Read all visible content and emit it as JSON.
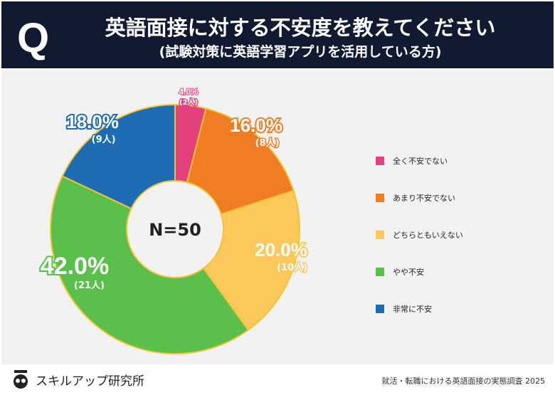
{
  "header": {
    "q": "Q",
    "title": "英語面接に対する不安度を教えてください",
    "subtitle": "(試験対策に英語学習アプリを活用している方)"
  },
  "chart_data": {
    "type": "pie",
    "donut": true,
    "center_label": "N=50",
    "categories": [
      "全く不安でない",
      "あまり不安でない",
      "どちらともいえない",
      "やや不安",
      "非常に不安"
    ],
    "values": [
      4.0,
      16.0,
      20.0,
      42.0,
      18.0
    ],
    "counts": [
      2,
      8,
      10,
      21,
      9
    ],
    "labels": [
      "4.0%",
      "16.0%",
      "20.0%",
      "42.0%",
      "18.0%"
    ],
    "count_labels": [
      "(2人)",
      "(8人)",
      "(10人)",
      "(21人)",
      "(9人)"
    ],
    "colors": [
      "#e5417e",
      "#f07d26",
      "#fcc85b",
      "#5bbf4b",
      "#1e6cb4"
    ],
    "legend_position": "right"
  },
  "footer": {
    "logo": "スキルアップ研究所",
    "source": "就活・転職における英語面接の実態調査 2025"
  }
}
